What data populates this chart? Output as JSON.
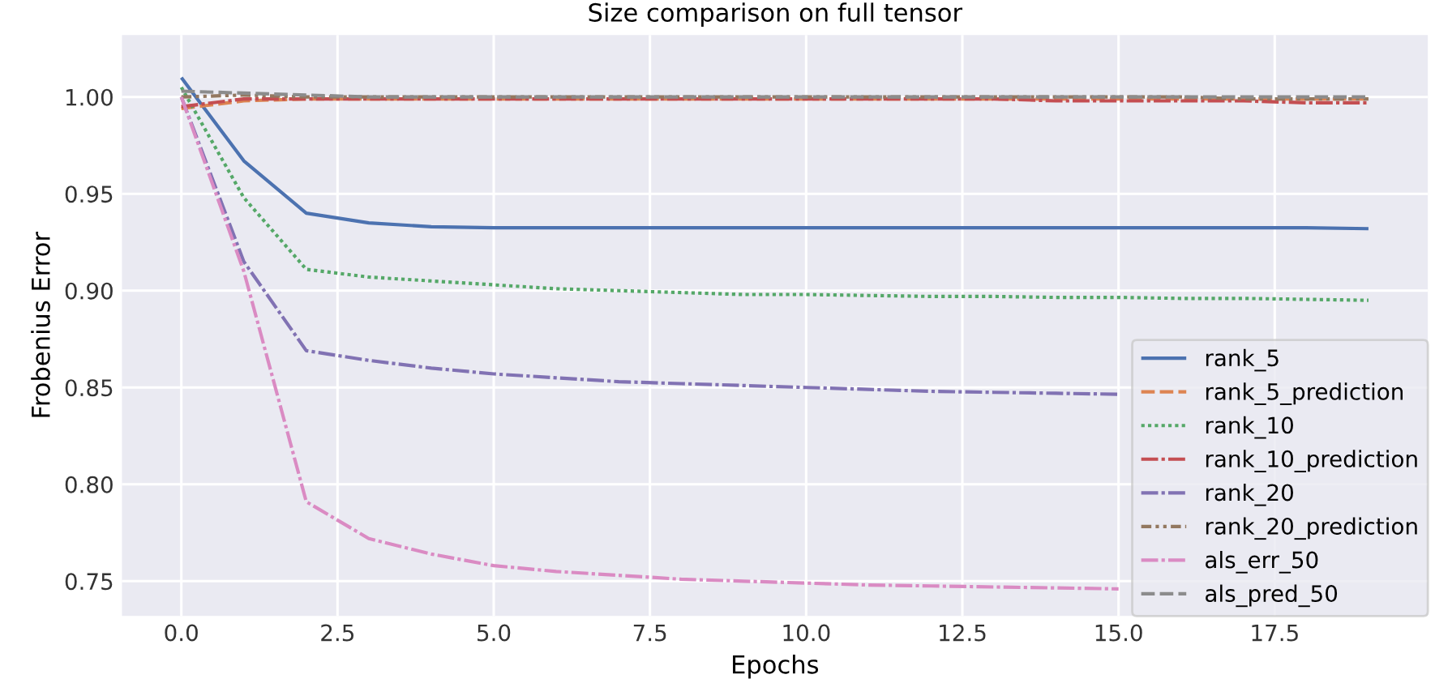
{
  "chart_data": {
    "type": "line",
    "title": "Size comparison on full tensor",
    "xlabel": "Epochs",
    "ylabel": "Frobenius Error",
    "x": [
      0,
      1,
      2,
      3,
      4,
      5,
      6,
      7,
      8,
      9,
      10,
      11,
      12,
      13,
      14,
      15,
      16,
      17,
      18,
      19
    ],
    "xlim": [
      -0.95,
      19.95
    ],
    "xticks": [
      {
        "value": 0,
        "label": "0.0"
      },
      {
        "value": 2.5,
        "label": "2.5"
      },
      {
        "value": 5,
        "label": "5.0"
      },
      {
        "value": 7.5,
        "label": "7.5"
      },
      {
        "value": 10,
        "label": "10.0"
      },
      {
        "value": 12.5,
        "label": "12.5"
      },
      {
        "value": 15,
        "label": "15.0"
      },
      {
        "value": 17.5,
        "label": "17.5"
      }
    ],
    "ylim": [
      0.732,
      1.032
    ],
    "yticks": [
      {
        "value": 0.75,
        "label": "0.75"
      },
      {
        "value": 0.8,
        "label": "0.80"
      },
      {
        "value": 0.85,
        "label": "0.85"
      },
      {
        "value": 0.9,
        "label": "0.90"
      },
      {
        "value": 0.95,
        "label": "0.95"
      },
      {
        "value": 1.0,
        "label": "1.00"
      }
    ],
    "grid": true,
    "legend": "bottom right",
    "series": [
      {
        "name": "rank_5",
        "color": "#4c72b0",
        "line_style": "solid",
        "values": [
          1.01,
          0.967,
          0.94,
          0.935,
          0.933,
          0.9325,
          0.9325,
          0.9325,
          0.9325,
          0.9325,
          0.9325,
          0.9325,
          0.9325,
          0.9325,
          0.9325,
          0.9325,
          0.9325,
          0.9325,
          0.9325,
          0.932
        ]
      },
      {
        "name": "rank_5_prediction",
        "color": "#dd8452",
        "line_style": "dashed",
        "values": [
          0.994,
          0.998,
          0.999,
          0.999,
          0.999,
          0.999,
          0.999,
          0.999,
          0.999,
          0.999,
          0.999,
          0.999,
          0.999,
          0.999,
          0.999,
          0.999,
          0.999,
          0.999,
          0.999,
          0.999
        ]
      },
      {
        "name": "rank_10",
        "color": "#55a868",
        "line_style": "dotted",
        "values": [
          1.005,
          0.948,
          0.911,
          0.907,
          0.905,
          0.903,
          0.901,
          0.9,
          0.899,
          0.898,
          0.898,
          0.8975,
          0.897,
          0.897,
          0.8965,
          0.8965,
          0.896,
          0.896,
          0.8955,
          0.895
        ]
      },
      {
        "name": "rank_10_prediction",
        "color": "#c44e52",
        "line_style": "dashdot",
        "values": [
          0.995,
          0.999,
          0.999,
          0.999,
          0.999,
          0.999,
          0.999,
          0.999,
          0.999,
          0.999,
          0.999,
          0.999,
          0.999,
          0.999,
          0.998,
          0.998,
          0.998,
          0.998,
          0.997,
          0.997
        ]
      },
      {
        "name": "rank_20",
        "color": "#8172b3",
        "line_style": "dashdot",
        "values": [
          1.0,
          0.915,
          0.869,
          0.864,
          0.86,
          0.857,
          0.855,
          0.853,
          0.852,
          0.851,
          0.85,
          0.849,
          0.848,
          0.8475,
          0.847,
          0.8465,
          null,
          null,
          null,
          null
        ]
      },
      {
        "name": "rank_20_prediction",
        "color": "#937860",
        "line_style": "dashdotdot",
        "values": [
          1.0,
          1.001,
          1.0,
          1.0,
          1.0,
          1.0,
          1.0,
          1.0,
          1.0,
          1.0,
          1.0,
          1.0,
          1.0,
          1.0,
          1.0,
          1.0,
          1.0,
          0.999,
          0.999,
          0.999
        ]
      },
      {
        "name": "als_err_50",
        "color": "#da8bc3",
        "line_style": "dashdot",
        "values": [
          1.0,
          0.91,
          0.791,
          0.772,
          0.764,
          0.758,
          0.755,
          0.753,
          0.751,
          0.75,
          0.749,
          0.748,
          0.7475,
          0.747,
          0.7465,
          0.746,
          null,
          null,
          null,
          null
        ]
      },
      {
        "name": "als_pred_50",
        "color": "#8c8c8c",
        "line_style": "dashed",
        "values": [
          1.003,
          1.002,
          1.001,
          1.0,
          1.0,
          1.0,
          1.0,
          1.0,
          1.0,
          1.0,
          1.0,
          1.0,
          1.0,
          1.0,
          1.0,
          1.0,
          1.0,
          1.0,
          1.0,
          1.0
        ]
      }
    ]
  }
}
